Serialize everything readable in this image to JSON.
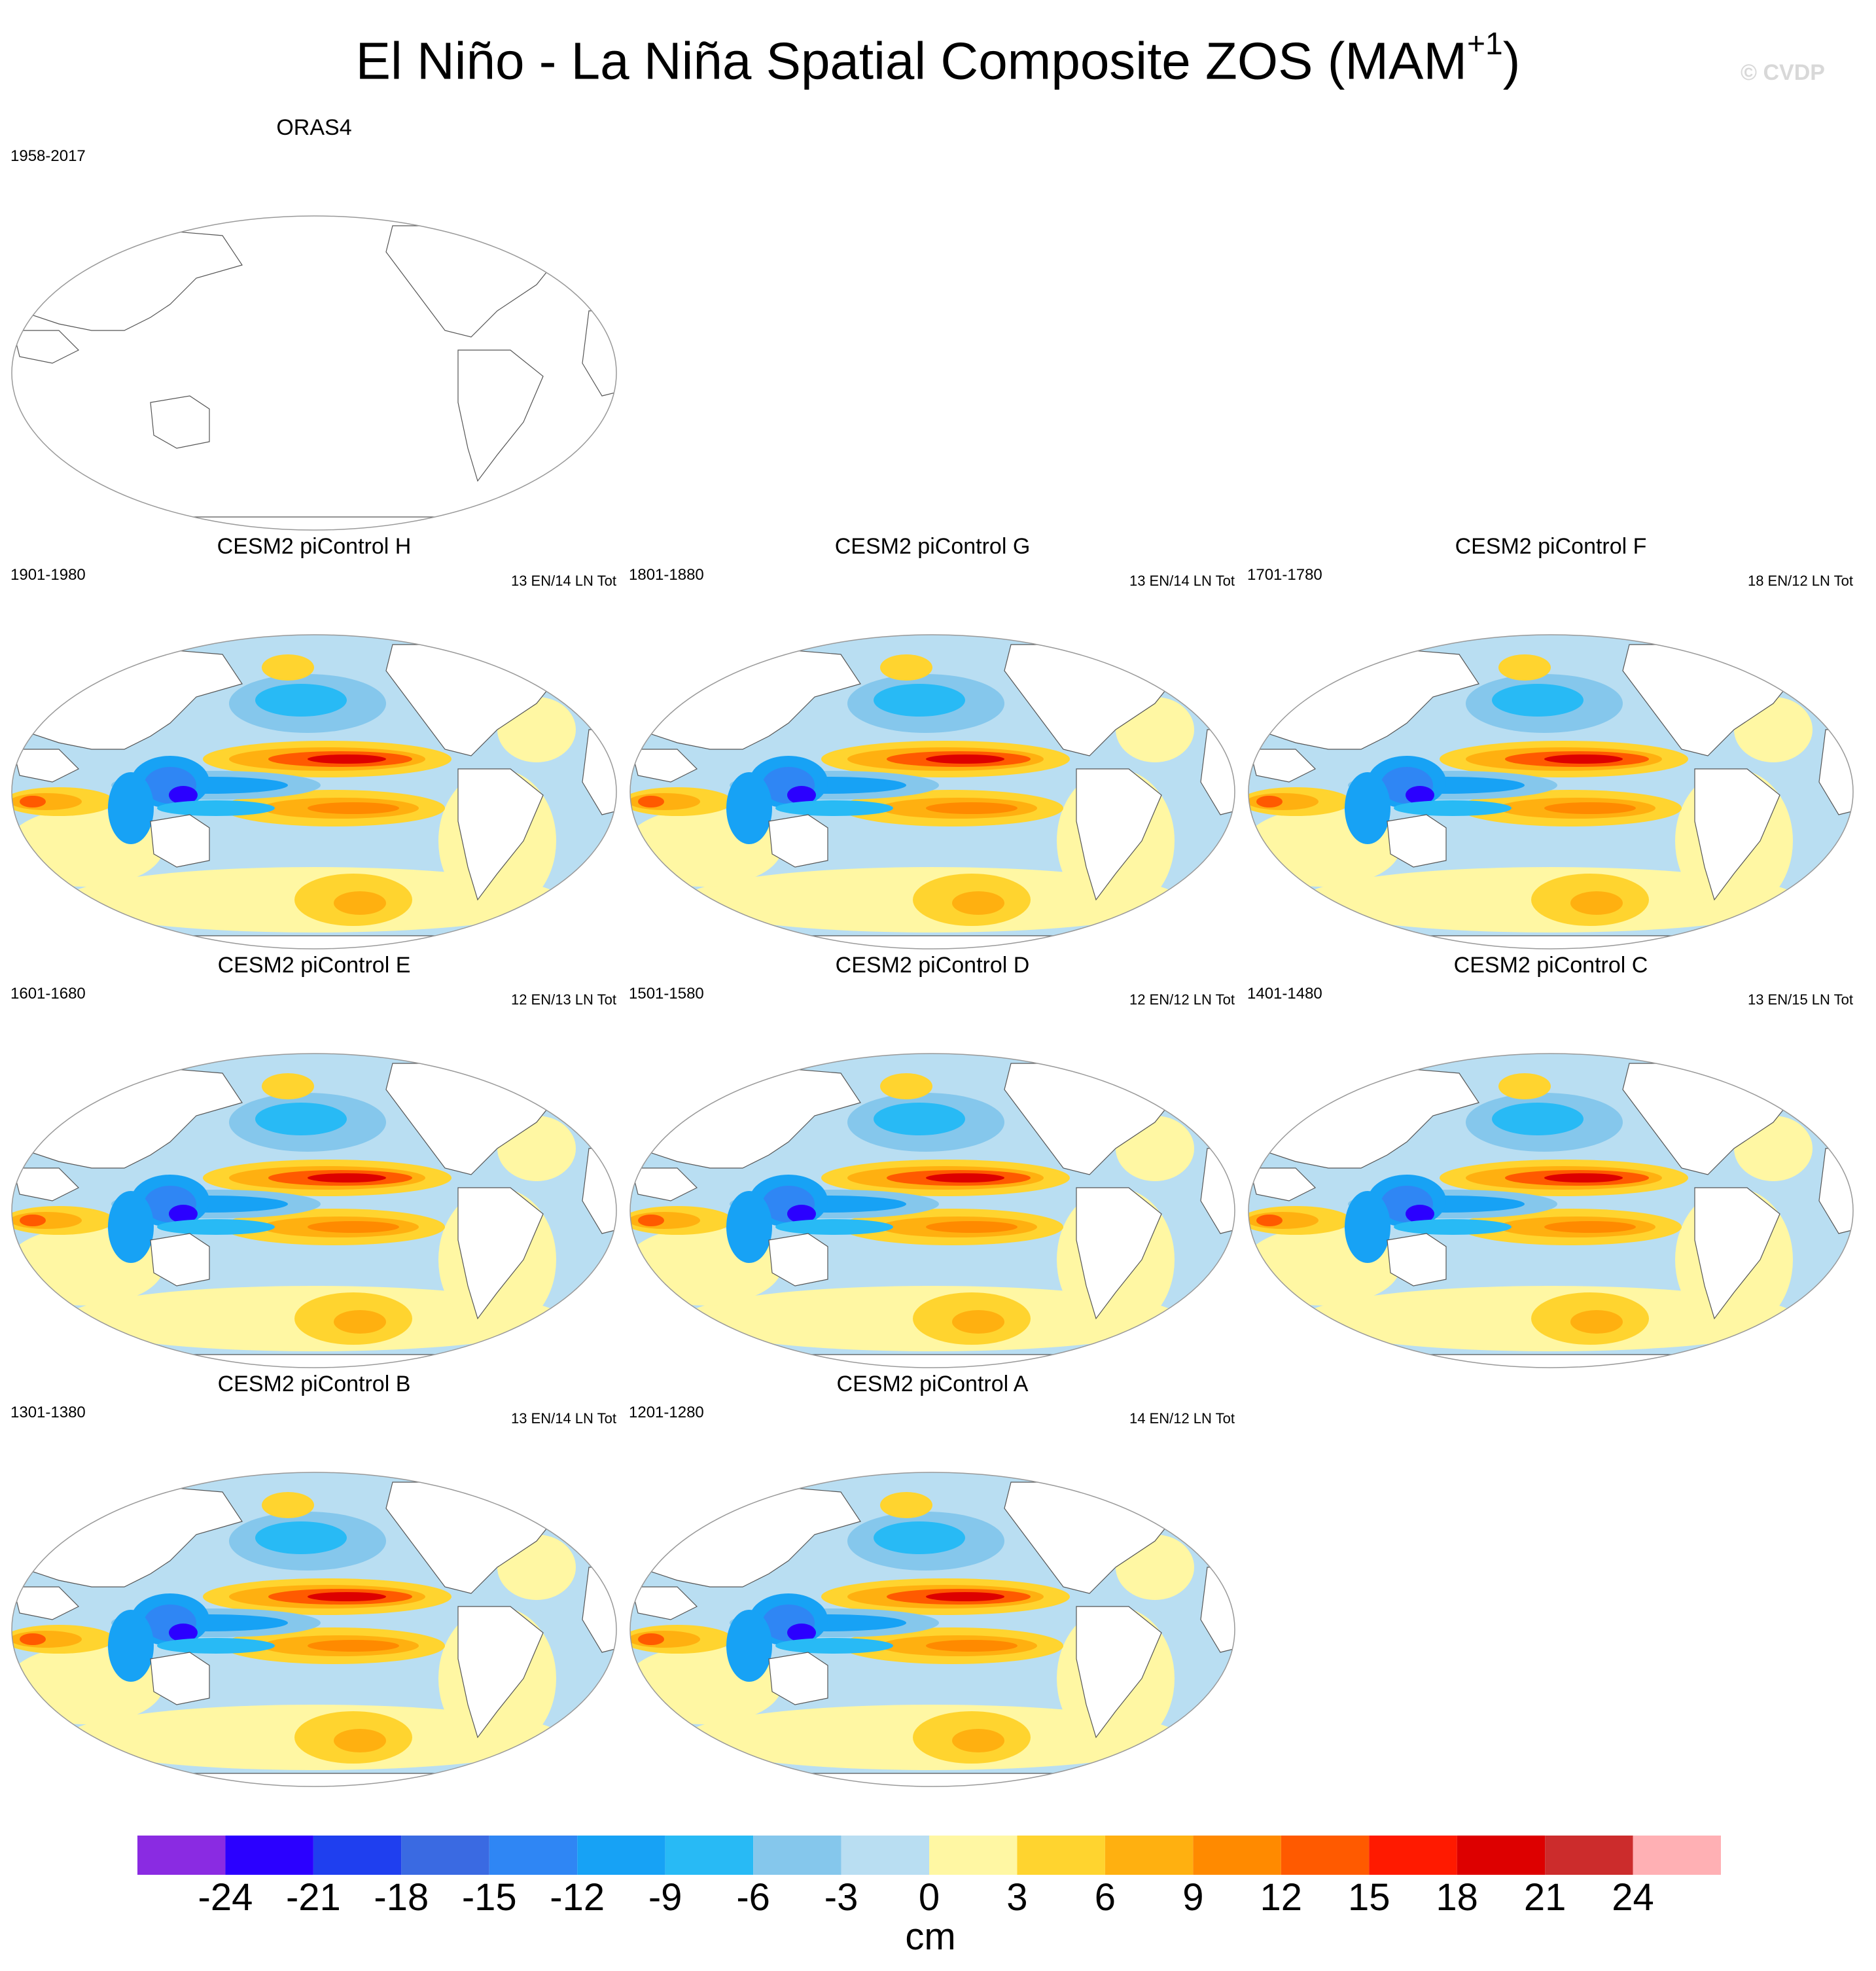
{
  "title": {
    "main": "El Niño - La Niña Spatial Composite ZOS (MAM",
    "superscript": "+1",
    "close": ")"
  },
  "watermark": "© CVDP",
  "panels": [
    {
      "title": "ORAS4",
      "period": "1958-2017",
      "count": "",
      "has_data": false
    },
    {
      "title": "CESM2 piControl H",
      "period": "1901-1980",
      "count": "13 EN/14 LN Tot",
      "has_data": true
    },
    {
      "title": "CESM2 piControl G",
      "period": "1801-1880",
      "count": "13 EN/14 LN Tot",
      "has_data": true
    },
    {
      "title": "CESM2 piControl F",
      "period": "1701-1780",
      "count": "18 EN/12 LN Tot",
      "has_data": true
    },
    {
      "title": "CESM2 piControl E",
      "period": "1601-1680",
      "count": "12 EN/13 LN Tot",
      "has_data": true
    },
    {
      "title": "CESM2 piControl D",
      "period": "1501-1580",
      "count": "12 EN/12 LN Tot",
      "has_data": true
    },
    {
      "title": "CESM2 piControl C",
      "period": "1401-1480",
      "count": "13 EN/15 LN Tot",
      "has_data": true
    },
    {
      "title": "CESM2 piControl B",
      "period": "1301-1380",
      "count": "13 EN/14 LN Tot",
      "has_data": true
    },
    {
      "title": "CESM2 piControl A",
      "period": "1201-1280",
      "count": "14 EN/12 LN Tot",
      "has_data": true
    }
  ],
  "colorbar": {
    "colors": [
      "#8a2be2",
      "#2b00ff",
      "#1f3fef",
      "#3a6ae2",
      "#2f86f4",
      "#17a2f5",
      "#28baf5",
      "#85c7ec",
      "#b9def2",
      "#fff7a3",
      "#ffd42f",
      "#ffb010",
      "#ff8a00",
      "#ff5a00",
      "#ff1a00",
      "#dd0000",
      "#cc2c2c",
      "#ffb0b4"
    ],
    "ticks": [
      "-24",
      "-21",
      "-18",
      "-15",
      "-12",
      "-9",
      "-6",
      "-3",
      "0",
      "3",
      "6",
      "9",
      "12",
      "15",
      "18",
      "21",
      "24"
    ],
    "units": "cm"
  }
}
